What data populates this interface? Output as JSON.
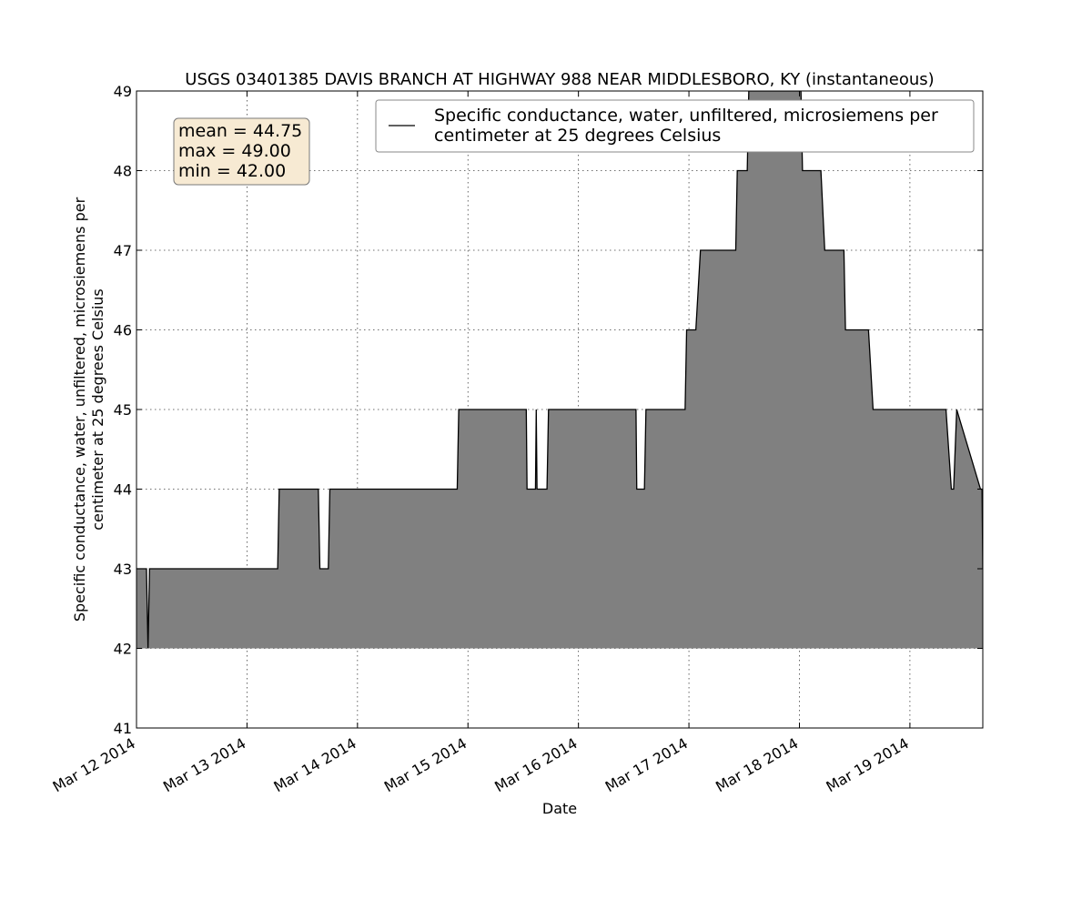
{
  "chart_data": {
    "type": "area",
    "title": "USGS 03401385 DAVIS BRANCH AT HIGHWAY 988 NEAR MIDDLESBORO, KY (instantaneous)",
    "xlabel": "Date",
    "ylabel_lines": [
      "Specific conductance, water, unfiltered, microsiemens per",
      "centimeter at 25 degrees Celsius"
    ],
    "ylim": [
      41,
      49
    ],
    "xlim": [
      "2014-03-12T00:00",
      "2014-03-19T15:50"
    ],
    "yticks": [
      41,
      42,
      43,
      44,
      45,
      46,
      47,
      48,
      49
    ],
    "xticks": [
      {
        "label": "Mar 12 2014",
        "t": "2014-03-12T00:00"
      },
      {
        "label": "Mar 13 2014",
        "t": "2014-03-13T00:00"
      },
      {
        "label": "Mar 14 2014",
        "t": "2014-03-14T00:00"
      },
      {
        "label": "Mar 15 2014",
        "t": "2014-03-15T00:00"
      },
      {
        "label": "Mar 16 2014",
        "t": "2014-03-16T00:00"
      },
      {
        "label": "Mar 17 2014",
        "t": "2014-03-17T00:00"
      },
      {
        "label": "Mar 18 2014",
        "t": "2014-03-18T00:00"
      },
      {
        "label": "Mar 19 2014",
        "t": "2014-03-19T00:00"
      }
    ],
    "grid": true,
    "fill_baseline": 42,
    "legend": {
      "placement": "top-right",
      "lines": [
        "Specific conductance, water, unfiltered, microsiemens per",
        "centimeter at 25 degrees Celsius"
      ]
    },
    "stats": {
      "lines": [
        "mean = 44.75",
        "max = 49.00",
        "min = 42.00"
      ]
    },
    "colors": {
      "line": "#000000",
      "fill": "#808080",
      "stats_box_fill": "#f7ead3",
      "stats_box_edge": "#7a7a7a"
    },
    "series": [
      {
        "x": [
          "2014-03-12T00:00",
          "2014-03-12T02:10",
          "2014-03-12T02:30",
          "2014-03-12T02:50",
          "2014-03-13T06:40",
          "2014-03-13T07:00",
          "2014-03-13T15:30",
          "2014-03-13T15:50",
          "2014-03-13T17:40",
          "2014-03-13T18:00",
          "2014-03-14T21:40",
          "2014-03-14T22:00",
          "2014-03-15T12:40",
          "2014-03-15T12:50",
          "2014-03-15T14:40",
          "2014-03-15T14:50",
          "2014-03-15T15:00",
          "2014-03-15T17:10",
          "2014-03-15T17:30",
          "2014-03-16T12:30",
          "2014-03-16T12:40",
          "2014-03-16T14:20",
          "2014-03-16T14:40",
          "2014-03-16T23:10",
          "2014-03-16T23:30",
          "2014-03-17T01:30",
          "2014-03-17T02:30",
          "2014-03-17T10:10",
          "2014-03-17T10:30",
          "2014-03-17T12:40",
          "2014-03-17T13:00",
          "2014-03-18T00:20",
          "2014-03-18T00:40",
          "2014-03-18T04:40",
          "2014-03-18T05:30",
          "2014-03-18T09:40",
          "2014-03-18T10:00",
          "2014-03-18T15:00",
          "2014-03-18T16:00",
          "2014-03-19T07:50",
          "2014-03-19T09:00",
          "2014-03-19T09:30",
          "2014-03-19T10:10",
          "2014-03-19T15:20",
          "2014-03-19T15:40",
          "2014-03-19T15:50"
        ],
        "y": [
          43,
          43,
          42,
          43,
          43,
          44,
          44,
          43,
          43,
          44,
          44,
          45,
          45,
          44,
          44,
          45,
          44,
          44,
          45,
          45,
          44,
          44,
          45,
          45,
          46,
          46,
          47,
          47,
          48,
          48,
          49,
          49,
          48,
          48,
          47,
          47,
          46,
          46,
          45,
          45,
          44,
          44,
          45,
          44,
          44,
          43
        ]
      }
    ]
  }
}
